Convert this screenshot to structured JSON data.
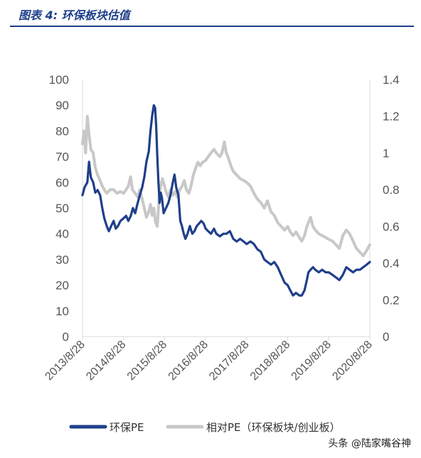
{
  "figure": {
    "title": "图表 4:  环保板块估值",
    "watermark": "头条 @陆家嘴谷神"
  },
  "chart_data": {
    "type": "line",
    "title": "",
    "xlabel": "",
    "ylabel": "",
    "x_ticks": [
      "2013/8/28",
      "2014/8/28",
      "2015/8/28",
      "2016/8/28",
      "2017/8/28",
      "2018/8/28",
      "2019/8/28",
      "2020/8/28"
    ],
    "x_range": [
      "2013/8/28",
      "2020/8/28"
    ],
    "y_left": {
      "range": [
        0,
        100
      ],
      "ticks": [
        "0",
        "10",
        "20",
        "30",
        "40",
        "50",
        "60",
        "70",
        "80",
        "90",
        "100"
      ]
    },
    "y_right": {
      "range": [
        0,
        1.4
      ],
      "ticks": [
        "0",
        "0.2",
        "0.4",
        "0.6",
        "0.8",
        "1",
        "1.2",
        "1.4"
      ]
    },
    "grid": false,
    "legend_position": "bottom",
    "series": [
      {
        "name": "环保PE",
        "axis": "left",
        "color": "#1f3f8a",
        "points": [
          [
            "2013/8/28",
            55
          ],
          [
            "2013/9/15",
            58
          ],
          [
            "2013/10/10",
            60
          ],
          [
            "2013/10/25",
            68
          ],
          [
            "2013/11/10",
            62
          ],
          [
            "2013/12/1",
            60
          ],
          [
            "2013/12/20",
            56
          ],
          [
            "2014/1/10",
            57
          ],
          [
            "2014/2/1",
            55
          ],
          [
            "2014/2/20",
            50
          ],
          [
            "2014/3/10",
            46
          ],
          [
            "2014/4/1",
            43
          ],
          [
            "2014/4/20",
            41
          ],
          [
            "2014/5/10",
            43
          ],
          [
            "2014/6/1",
            45
          ],
          [
            "2014/6/20",
            42
          ],
          [
            "2014/7/10",
            43
          ],
          [
            "2014/8/1",
            45
          ],
          [
            "2014/8/28",
            46
          ],
          [
            "2014/9/20",
            47
          ],
          [
            "2014/10/10",
            45
          ],
          [
            "2014/11/1",
            47
          ],
          [
            "2014/11/20",
            50
          ],
          [
            "2014/12/10",
            48
          ],
          [
            "2015/1/1",
            52
          ],
          [
            "2015/1/20",
            55
          ],
          [
            "2015/2/10",
            58
          ],
          [
            "2015/3/1",
            62
          ],
          [
            "2015/3/20",
            68
          ],
          [
            "2015/4/10",
            72
          ],
          [
            "2015/4/25",
            80
          ],
          [
            "2015/5/10",
            86
          ],
          [
            "2015/5/25",
            90
          ],
          [
            "2015/6/5",
            89
          ],
          [
            "2015/6/15",
            82
          ],
          [
            "2015/6/25",
            70
          ],
          [
            "2015/7/5",
            60
          ],
          [
            "2015/7/15",
            52
          ],
          [
            "2015/7/25",
            56
          ],
          [
            "2015/8/5",
            54
          ],
          [
            "2015/8/20",
            48
          ],
          [
            "2015/9/10",
            50
          ],
          [
            "2015/10/1",
            52
          ],
          [
            "2015/10/20",
            55
          ],
          [
            "2015/11/10",
            60
          ],
          [
            "2015/11/25",
            63
          ],
          [
            "2015/12/10",
            58
          ],
          [
            "2015/12/30",
            55
          ],
          [
            "2016/1/15",
            45
          ],
          [
            "2016/1/30",
            43
          ],
          [
            "2016/2/15",
            40
          ],
          [
            "2016/3/1",
            38
          ],
          [
            "2016/3/20",
            40
          ],
          [
            "2016/4/10",
            43
          ],
          [
            "2016/5/1",
            40
          ],
          [
            "2016/5/20",
            41
          ],
          [
            "2016/6/10",
            43
          ],
          [
            "2016/7/1",
            44
          ],
          [
            "2016/7/20",
            45
          ],
          [
            "2016/8/10",
            44
          ],
          [
            "2016/8/28",
            42
          ],
          [
            "2016/9/20",
            41
          ],
          [
            "2016/10/15",
            40
          ],
          [
            "2016/11/10",
            42
          ],
          [
            "2016/12/1",
            40
          ],
          [
            "2017/1/1",
            39
          ],
          [
            "2017/2/1",
            40
          ],
          [
            "2017/3/1",
            40
          ],
          [
            "2017/4/1",
            41
          ],
          [
            "2017/5/1",
            38
          ],
          [
            "2017/6/1",
            37
          ],
          [
            "2017/7/1",
            38
          ],
          [
            "2017/8/1",
            37
          ],
          [
            "2017/8/28",
            36
          ],
          [
            "2017/10/1",
            37
          ],
          [
            "2017/11/1",
            36
          ],
          [
            "2017/12/1",
            34
          ],
          [
            "2018/1/1",
            33
          ],
          [
            "2018/2/1",
            30
          ],
          [
            "2018/3/1",
            29
          ],
          [
            "2018/4/1",
            28
          ],
          [
            "2018/5/1",
            29
          ],
          [
            "2018/6/1",
            27
          ],
          [
            "2018/7/1",
            24
          ],
          [
            "2018/8/1",
            21
          ],
          [
            "2018/8/28",
            20
          ],
          [
            "2018/9/20",
            18
          ],
          [
            "2018/10/15",
            16
          ],
          [
            "2018/11/10",
            17
          ],
          [
            "2018/12/10",
            16
          ],
          [
            "2019/1/1",
            16
          ],
          [
            "2019/1/25",
            18
          ],
          [
            "2019/2/15",
            22
          ],
          [
            "2019/3/1",
            25
          ],
          [
            "2019/3/20",
            26
          ],
          [
            "2019/4/10",
            27
          ],
          [
            "2019/5/1",
            26
          ],
          [
            "2019/6/1",
            25
          ],
          [
            "2019/7/1",
            26
          ],
          [
            "2019/8/1",
            25
          ],
          [
            "2019/8/28",
            25
          ],
          [
            "2019/10/1",
            24
          ],
          [
            "2019/11/1",
            23
          ],
          [
            "2019/12/1",
            22
          ],
          [
            "2020/1/1",
            24
          ],
          [
            "2020/2/1",
            27
          ],
          [
            "2020/3/1",
            26
          ],
          [
            "2020/4/1",
            25
          ],
          [
            "2020/5/1",
            26
          ],
          [
            "2020/6/1",
            26
          ],
          [
            "2020/7/1",
            27
          ],
          [
            "2020/8/1",
            28
          ],
          [
            "2020/8/28",
            29
          ]
        ]
      },
      {
        "name": "相对PE（环保板块/创业板）",
        "axis": "right",
        "color": "#c8c8c8",
        "points": [
          [
            "2013/8/28",
            1.05
          ],
          [
            "2013/9/10",
            1.12
          ],
          [
            "2013/9/25",
            1.0
          ],
          [
            "2013/10/10",
            1.2
          ],
          [
            "2013/10/25",
            1.1
          ],
          [
            "2013/11/10",
            1.02
          ],
          [
            "2013/12/1",
            1.0
          ],
          [
            "2013/12/20",
            0.92
          ],
          [
            "2014/1/10",
            0.88
          ],
          [
            "2014/2/1",
            0.85
          ],
          [
            "2014/2/20",
            0.82
          ],
          [
            "2014/3/10",
            0.8
          ],
          [
            "2014/4/1",
            0.78
          ],
          [
            "2014/5/1",
            0.8
          ],
          [
            "2014/6/1",
            0.8
          ],
          [
            "2014/7/1",
            0.78
          ],
          [
            "2014/8/1",
            0.79
          ],
          [
            "2014/8/28",
            0.78
          ],
          [
            "2014/9/20",
            0.8
          ],
          [
            "2014/10/10",
            0.82
          ],
          [
            "2014/10/30",
            0.87
          ],
          [
            "2014/11/15",
            0.8
          ],
          [
            "2014/12/10",
            0.78
          ],
          [
            "2015/1/1",
            0.76
          ],
          [
            "2015/1/20",
            0.8
          ],
          [
            "2015/2/10",
            0.75
          ],
          [
            "2015/3/1",
            0.7
          ],
          [
            "2015/3/20",
            0.65
          ],
          [
            "2015/4/10",
            0.68
          ],
          [
            "2015/4/25",
            0.72
          ],
          [
            "2015/5/10",
            0.66
          ],
          [
            "2015/5/25",
            0.7
          ],
          [
            "2015/6/10",
            0.62
          ],
          [
            "2015/6/25",
            0.6
          ],
          [
            "2015/7/10",
            0.75
          ],
          [
            "2015/7/25",
            0.82
          ],
          [
            "2015/8/10",
            0.86
          ],
          [
            "2015/8/28",
            0.82
          ],
          [
            "2015/9/15",
            0.78
          ],
          [
            "2015/10/1",
            0.76
          ],
          [
            "2015/10/20",
            0.8
          ],
          [
            "2015/11/10",
            0.77
          ],
          [
            "2015/12/1",
            0.79
          ],
          [
            "2015/12/20",
            0.76
          ],
          [
            "2016/1/10",
            0.8
          ],
          [
            "2016/2/1",
            0.82
          ],
          [
            "2016/2/20",
            0.85
          ],
          [
            "2016/3/10",
            0.8
          ],
          [
            "2016/4/1",
            0.78
          ],
          [
            "2016/4/20",
            0.82
          ],
          [
            "2016/5/10",
            0.88
          ],
          [
            "2016/6/1",
            0.92
          ],
          [
            "2016/6/20",
            0.95
          ],
          [
            "2016/7/10",
            0.93
          ],
          [
            "2016/8/1",
            0.95
          ],
          [
            "2016/8/28",
            0.96
          ],
          [
            "2016/9/20",
            0.98
          ],
          [
            "2016/10/15",
            1.0
          ],
          [
            "2016/11/10",
            1.02
          ],
          [
            "2016/12/1",
            1.0
          ],
          [
            "2017/1/1",
            0.98
          ],
          [
            "2017/1/20",
            1.0
          ],
          [
            "2017/2/10",
            1.06
          ],
          [
            "2017/2/28",
            1.0
          ],
          [
            "2017/3/20",
            0.97
          ],
          [
            "2017/4/10",
            0.93
          ],
          [
            "2017/5/1",
            0.9
          ],
          [
            "2017/6/1",
            0.88
          ],
          [
            "2017/7/1",
            0.86
          ],
          [
            "2017/8/1",
            0.85
          ],
          [
            "2017/8/28",
            0.84
          ],
          [
            "2017/10/1",
            0.82
          ],
          [
            "2017/11/1",
            0.78
          ],
          [
            "2017/12/1",
            0.75
          ],
          [
            "2018/1/1",
            0.73
          ],
          [
            "2018/2/1",
            0.7
          ],
          [
            "2018/3/1",
            0.74
          ],
          [
            "2018/4/1",
            0.68
          ],
          [
            "2018/5/1",
            0.66
          ],
          [
            "2018/6/1",
            0.62
          ],
          [
            "2018/7/1",
            0.6
          ],
          [
            "2018/8/1",
            0.58
          ],
          [
            "2018/8/28",
            0.6
          ],
          [
            "2018/9/20",
            0.57
          ],
          [
            "2018/10/15",
            0.55
          ],
          [
            "2018/11/10",
            0.57
          ],
          [
            "2018/12/10",
            0.54
          ],
          [
            "2019/1/1",
            0.52
          ],
          [
            "2019/1/25",
            0.55
          ],
          [
            "2019/2/15",
            0.6
          ],
          [
            "2019/3/1",
            0.62
          ],
          [
            "2019/3/20",
            0.65
          ],
          [
            "2019/4/10",
            0.6
          ],
          [
            "2019/5/1",
            0.58
          ],
          [
            "2019/6/1",
            0.56
          ],
          [
            "2019/7/1",
            0.55
          ],
          [
            "2019/8/1",
            0.54
          ],
          [
            "2019/8/28",
            0.53
          ],
          [
            "2019/10/1",
            0.52
          ],
          [
            "2019/11/1",
            0.5
          ],
          [
            "2019/12/1",
            0.48
          ],
          [
            "2020/1/1",
            0.55
          ],
          [
            "2020/2/1",
            0.58
          ],
          [
            "2020/3/1",
            0.56
          ],
          [
            "2020/4/1",
            0.52
          ],
          [
            "2020/5/1",
            0.48
          ],
          [
            "2020/6/1",
            0.46
          ],
          [
            "2020/7/1",
            0.44
          ],
          [
            "2020/8/1",
            0.47
          ],
          [
            "2020/8/28",
            0.5
          ]
        ]
      }
    ]
  }
}
